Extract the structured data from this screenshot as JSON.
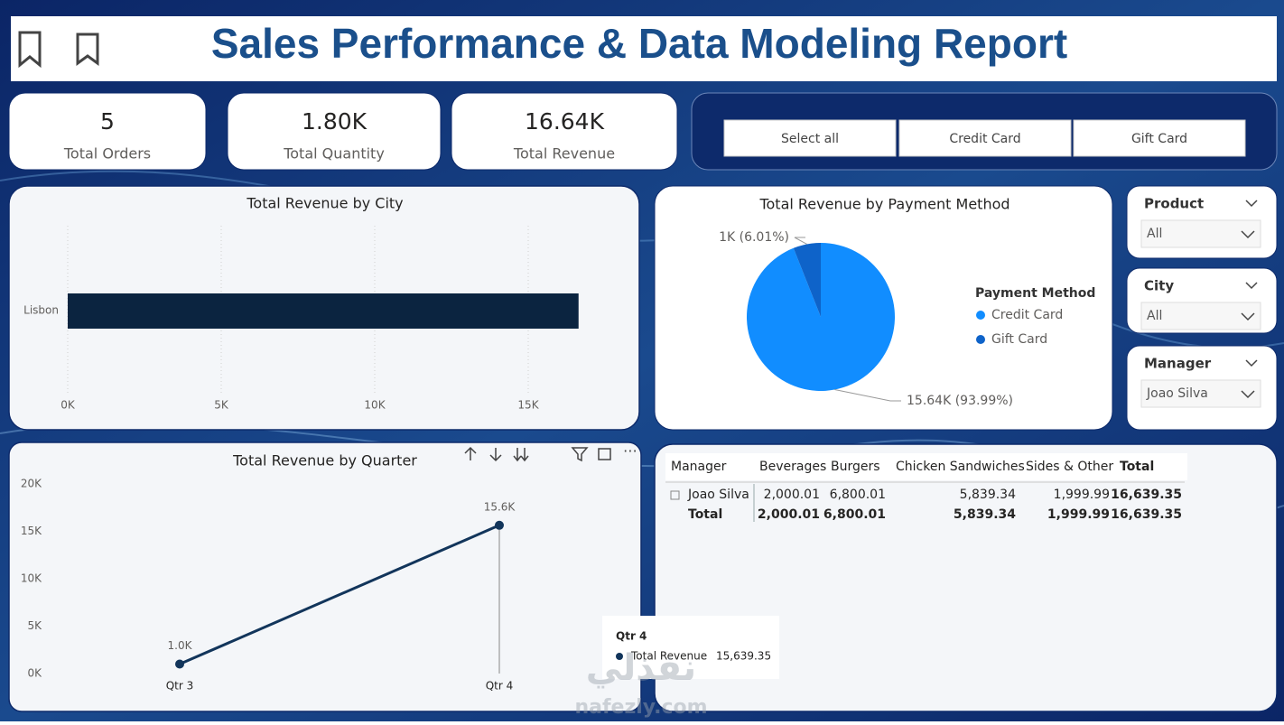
{
  "header": {
    "title": "Sales Performance & Data Modeling Report"
  },
  "kpis": [
    {
      "value": "5",
      "label": "Total Orders"
    },
    {
      "value": "1.80K",
      "label": "Total Quantity"
    },
    {
      "value": "16.64K",
      "label": "Total Revenue"
    }
  ],
  "payment_slicer": {
    "options": [
      "Select all",
      "Credit Card",
      "Gift Card"
    ]
  },
  "filters": [
    {
      "label": "Product",
      "value": "All"
    },
    {
      "label": "City",
      "value": "All"
    },
    {
      "label": "Manager",
      "value": "Joao Silva"
    }
  ],
  "chart_data": [
    {
      "type": "bar",
      "title": "Total Revenue by City",
      "categories": [
        "Lisbon"
      ],
      "values": [
        16639.35
      ],
      "color": "#0b2440",
      "xlim": [
        0,
        18000
      ],
      "xticks": [
        {
          "value": 0,
          "label": "0K"
        },
        {
          "value": 5000,
          "label": "5K"
        },
        {
          "value": 10000,
          "label": "10K"
        },
        {
          "value": 15000,
          "label": "15K"
        }
      ],
      "grid": true
    },
    {
      "type": "pie",
      "title": "Total Revenue by Payment Method",
      "legend_title": "Payment Method",
      "categories": [
        "Credit Card",
        "Gift Card"
      ],
      "values": [
        15639.35,
        1000
      ],
      "value_labels": [
        "15.64K (93.99%)",
        "1K (6.01%)"
      ],
      "colors": [
        "#118dff",
        "#0e63c9"
      ]
    },
    {
      "type": "line",
      "title": "Total Revenue by Quarter",
      "categories": [
        "Qtr 3",
        "Qtr 4"
      ],
      "values": [
        1000,
        15639.35
      ],
      "value_labels": [
        "1.0K",
        "15.6K"
      ],
      "color": "#12355b",
      "ylim": [
        0,
        20000
      ],
      "yticks": [
        {
          "value": 0,
          "label": "0K"
        },
        {
          "value": 5000,
          "label": "5K"
        },
        {
          "value": 10000,
          "label": "10K"
        },
        {
          "value": 15000,
          "label": "15K"
        },
        {
          "value": 20000,
          "label": "20K"
        }
      ]
    }
  ],
  "tooltip": {
    "title": "Qtr 4",
    "series": "Total Revenue",
    "value": "15,639.35"
  },
  "table": {
    "header": [
      "Manager",
      "Beverages",
      "Burgers",
      "Chicken Sandwiches",
      "Sides & Other",
      "Total"
    ],
    "rows": [
      [
        "Joao Silva",
        "2,000.01",
        "6,800.01",
        "5,839.34",
        "1,999.99",
        "16,639.35"
      ],
      [
        "Total",
        "2,000.01",
        "6,800.01",
        "5,839.34",
        "1,999.99",
        "16,639.35"
      ]
    ]
  },
  "watermark": [
    "نفذلي",
    "nafezly.com"
  ]
}
